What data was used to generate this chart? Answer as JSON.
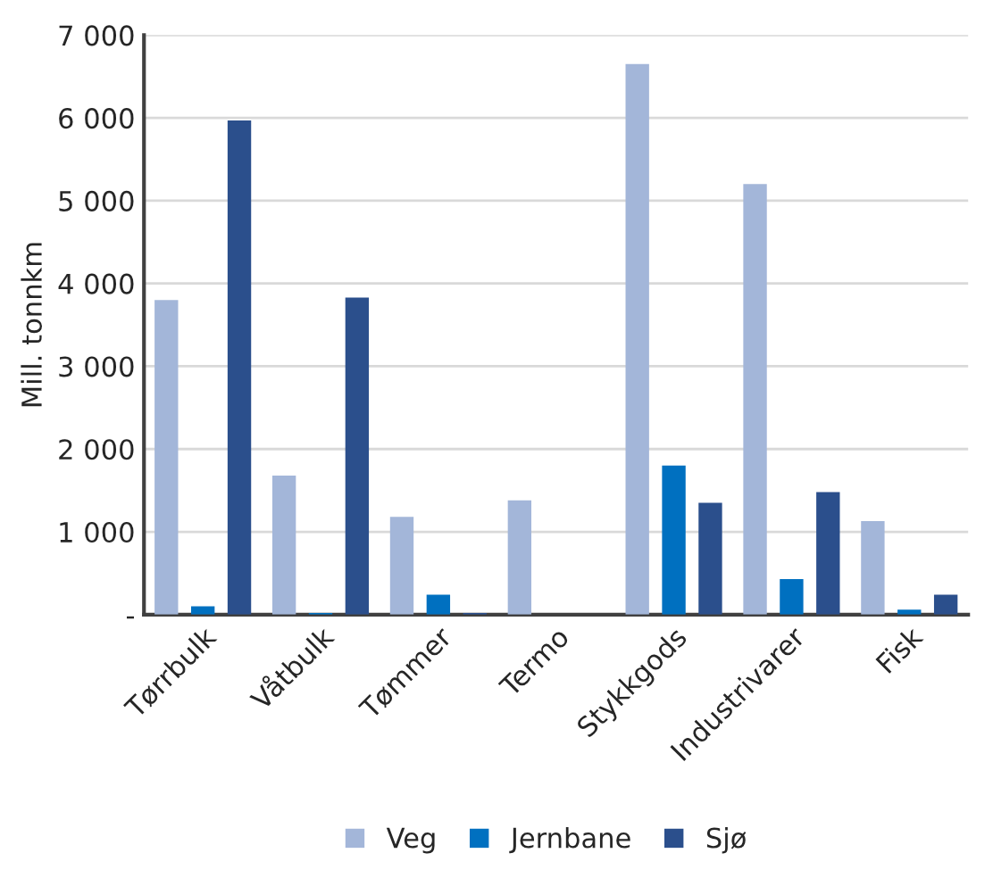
{
  "chart_data": {
    "type": "bar",
    "ylabel": "Mill. tonnkm",
    "categories": [
      "Tørrbulk",
      "Våtbulk",
      "Tømmer",
      "Termo",
      "Stykkgods",
      "Industrivarer",
      "Fisk"
    ],
    "series": [
      {
        "name": "Veg",
        "color": "#a3b6d9",
        "values": [
          3800,
          1680,
          1180,
          1380,
          6650,
          5200,
          1130
        ]
      },
      {
        "name": "Jernbane",
        "color": "#0070c0",
        "values": [
          100,
          20,
          240,
          null,
          1800,
          430,
          60
        ]
      },
      {
        "name": "Sjø",
        "color": "#2b4f8c",
        "values": [
          5970,
          3830,
          20,
          null,
          1350,
          1480,
          240
        ]
      }
    ],
    "ylim": [
      0,
      7000
    ],
    "yticks": [
      {
        "value": 0,
        "label": "-"
      },
      {
        "value": 1000,
        "label": "1 000"
      },
      {
        "value": 2000,
        "label": "2 000"
      },
      {
        "value": 3000,
        "label": "3 000"
      },
      {
        "value": 4000,
        "label": "4 000"
      },
      {
        "value": 5000,
        "label": "5 000"
      },
      {
        "value": 6000,
        "label": "6 000"
      },
      {
        "value": 7000,
        "label": "7 000"
      }
    ],
    "grid": "y",
    "legend": "bottom"
  }
}
